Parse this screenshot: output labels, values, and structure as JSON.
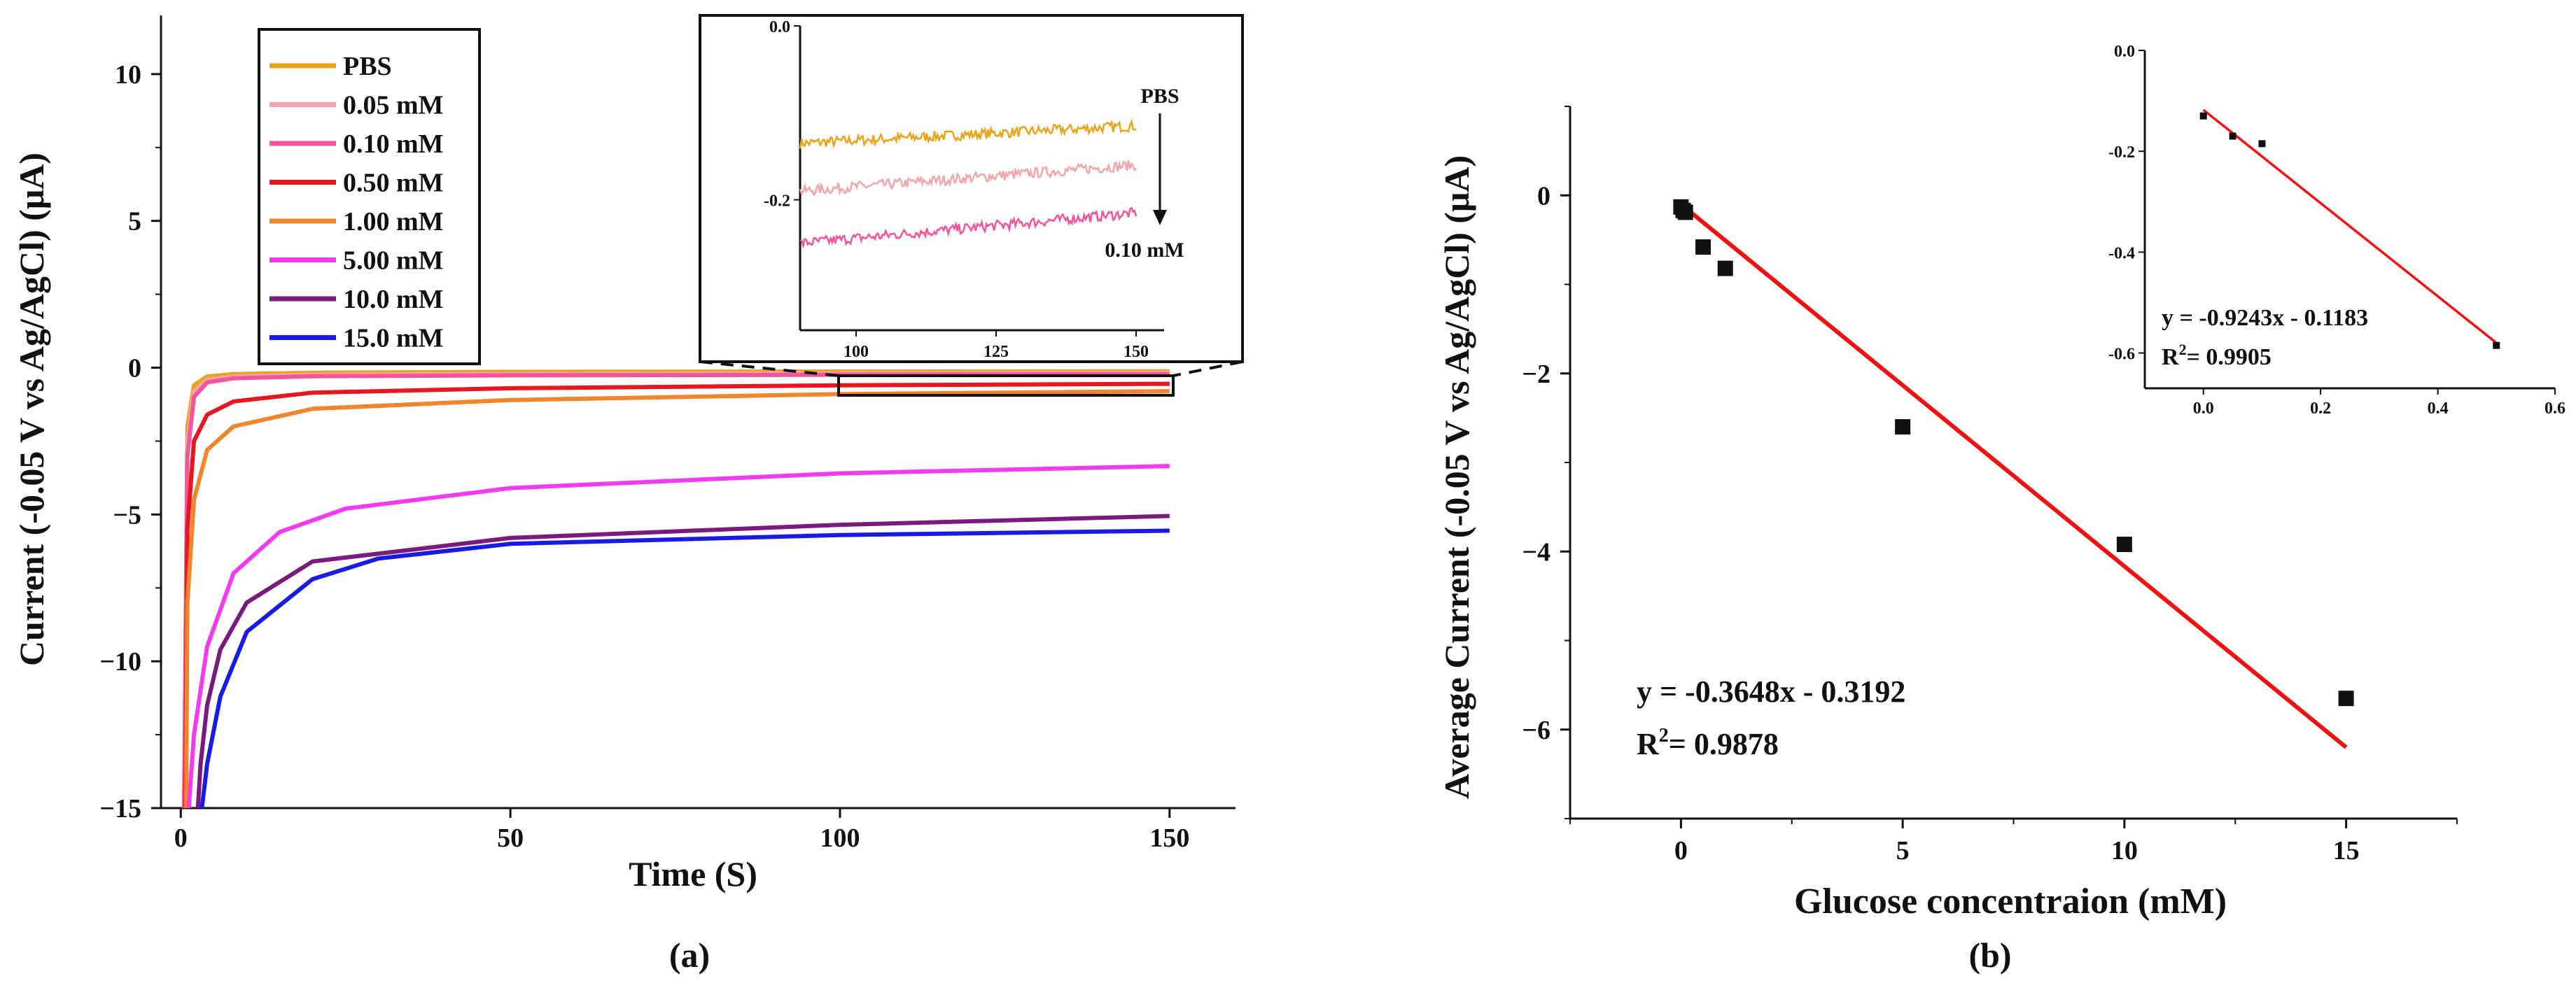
{
  "colors": {
    "PBS": "#E8A317",
    "0.05 mM": "#F4A3A8",
    "0.10 mM": "#F2559B",
    "0.50 mM": "#E8161E",
    "1.00 mM": "#F0852C",
    "5.00 mM": "#F23BF0",
    "10.0 mM": "#7B1A7E",
    "15.0 mM": "#1A1AE8",
    "fit": "#F21111",
    "axis": "#111111"
  },
  "chart_data": [
    {
      "id": "a-main",
      "type": "line",
      "panel_label": "(a)",
      "xlabel": "Time (S)",
      "ylabel": "Current (-0.05 V vs Ag/AgCl) (μA)",
      "xlim": [
        -3,
        160
      ],
      "ylim": [
        -15,
        12
      ],
      "xticks": [
        0,
        50,
        100,
        150
      ],
      "yticks": [
        -15,
        -10,
        -5,
        0,
        5,
        10
      ],
      "legend_position": "top-left",
      "series": [
        {
          "name": "PBS",
          "x": [
            0.5,
            1,
            2,
            4,
            8,
            20,
            50,
            100,
            150
          ],
          "y": [
            -15,
            -2.0,
            -0.6,
            -0.3,
            -0.22,
            -0.17,
            -0.14,
            -0.13,
            -0.12
          ]
        },
        {
          "name": "0.05 mM",
          "x": [
            0.5,
            1,
            2,
            4,
            8,
            20,
            50,
            100,
            150
          ],
          "y": [
            -15,
            -2.5,
            -0.8,
            -0.4,
            -0.3,
            -0.24,
            -0.21,
            -0.19,
            -0.17
          ]
        },
        {
          "name": "0.10 mM",
          "x": [
            0.5,
            1,
            2,
            4,
            8,
            20,
            50,
            100,
            150
          ],
          "y": [
            -15,
            -3.0,
            -1.0,
            -0.5,
            -0.36,
            -0.29,
            -0.26,
            -0.24,
            -0.22
          ]
        },
        {
          "name": "0.50 mM",
          "x": [
            0.7,
            1,
            2,
            4,
            8,
            20,
            50,
            100,
            150
          ],
          "y": [
            -15,
            -5.5,
            -2.5,
            -1.6,
            -1.15,
            -0.85,
            -0.7,
            -0.6,
            -0.55
          ]
        },
        {
          "name": "1.00 mM",
          "x": [
            0.8,
            1,
            2,
            4,
            8,
            20,
            50,
            100,
            150
          ],
          "y": [
            -15,
            -8.0,
            -4.5,
            -2.8,
            -2.0,
            -1.4,
            -1.1,
            -0.9,
            -0.8
          ]
        },
        {
          "name": "5.00 mM",
          "x": [
            1.2,
            2,
            4,
            8,
            15,
            25,
            50,
            100,
            150
          ],
          "y": [
            -15,
            -12.5,
            -9.5,
            -7.0,
            -5.6,
            -4.8,
            -4.1,
            -3.6,
            -3.35
          ]
        },
        {
          "name": "10.0 mM",
          "x": [
            2.6,
            3,
            4,
            6,
            10,
            20,
            50,
            100,
            150
          ],
          "y": [
            -15,
            -13.5,
            -11.5,
            -9.6,
            -8.0,
            -6.6,
            -5.8,
            -5.35,
            -5.05
          ]
        },
        {
          "name": "15.0 mM",
          "x": [
            3.2,
            4,
            6,
            10,
            20,
            30,
            50,
            100,
            150
          ],
          "y": [
            -15,
            -13.5,
            -11.2,
            -9.0,
            -7.2,
            -6.5,
            -6.0,
            -5.7,
            -5.55
          ]
        }
      ]
    },
    {
      "id": "a-inset",
      "type": "line",
      "xlim": [
        90,
        155
      ],
      "ylim": [
        -0.35,
        0.0
      ],
      "xticks": [
        100,
        125,
        150
      ],
      "yticks": [
        0.0,
        -0.2
      ],
      "ytick_labels": [
        "0.0",
        "-0.2"
      ],
      "annotation_top": "PBS",
      "annotation_bottom": "0.10 mM",
      "series": [
        {
          "name": "PBS",
          "x": [
            90,
            150
          ],
          "y": [
            -0.135,
            -0.115
          ]
        },
        {
          "name": "0.05 mM",
          "x": [
            90,
            150
          ],
          "y": [
            -0.19,
            -0.16
          ]
        },
        {
          "name": "0.10 mM",
          "x": [
            90,
            150
          ],
          "y": [
            -0.25,
            -0.215
          ]
        }
      ]
    },
    {
      "id": "b-main",
      "type": "scatter",
      "panel_label": "(b)",
      "xlabel": "Glucose concentraion (mM)",
      "ylabel": "Average Current (-0.05 V vs Ag/AgCl) (μA)",
      "xlim": [
        -2.5,
        17.5
      ],
      "ylim": [
        -7,
        1
      ],
      "xticks": [
        0,
        5,
        10,
        15
      ],
      "yticks": [
        -6,
        -4,
        -2,
        0
      ],
      "yticklabels": [
        "−6",
        "−4",
        "−2",
        "0"
      ],
      "x": [
        0,
        0.05,
        0.1,
        0.5,
        1,
        5,
        10,
        15
      ],
      "y": [
        -0.13,
        -0.17,
        -0.19,
        -0.58,
        -0.82,
        -2.6,
        -3.92,
        -5.65
      ],
      "fit": {
        "x": [
          0,
          15
        ],
        "y": [
          -0.1,
          -6.2
        ]
      },
      "equation": "y = -0.3648x - 0.3192",
      "r2_prefix": "R",
      "r2_sup": "2",
      "r2_value": "= 0.9878"
    },
    {
      "id": "b-inset",
      "type": "scatter",
      "xlim": [
        -0.1,
        0.6
      ],
      "ylim": [
        -0.67,
        0.0
      ],
      "xticks": [
        0.0,
        0.2,
        0.4,
        0.6
      ],
      "xticklabels": [
        "0.0",
        "0.2",
        "0.4",
        "0.6"
      ],
      "yticks": [
        0.0,
        -0.2,
        -0.4,
        -0.6
      ],
      "yticklabels": [
        "0.0",
        "-0.2",
        "-0.4",
        "-0.6"
      ],
      "x": [
        0,
        0.05,
        0.1,
        0.5
      ],
      "y": [
        -0.13,
        -0.17,
        -0.185,
        -0.585
      ],
      "fit": {
        "x": [
          0,
          0.5
        ],
        "y": [
          -0.118,
          -0.58
        ]
      },
      "equation": "y = -0.9243x - 0.1183",
      "r2_prefix": "R",
      "r2_sup": "2",
      "r2_value": "= 0.9905"
    }
  ]
}
